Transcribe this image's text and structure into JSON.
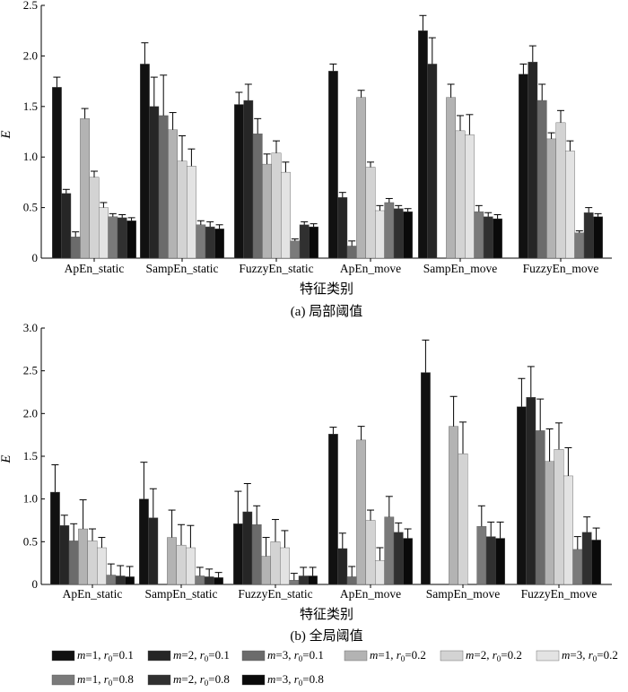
{
  "figure": {
    "legend": {
      "entries": [
        {
          "m": "1",
          "r": "0.1",
          "color": "#111111"
        },
        {
          "m": "2",
          "r": "0.1",
          "color": "#262626"
        },
        {
          "m": "3",
          "r": "0.1",
          "color": "#6b6b6b"
        },
        {
          "m": "1",
          "r": "0.2",
          "color": "#b3b3b3"
        },
        {
          "m": "2",
          "r": "0.2",
          "color": "#d3d3d3"
        },
        {
          "m": "3",
          "r": "0.2",
          "color": "#e3e3e3"
        },
        {
          "m": "1",
          "r": "0.8",
          "color": "#7a7a7a"
        },
        {
          "m": "2",
          "r": "0.8",
          "color": "#303030"
        },
        {
          "m": "3",
          "r": "0.8",
          "color": "#0a0a0a"
        }
      ],
      "m_symbol": "m",
      "r_symbol": "r",
      "r_subscript": "0"
    }
  },
  "chart_data": [
    {
      "type": "bar",
      "caption": "(a) 局部阈值",
      "xlabel": "特征类别",
      "ylabel": "E",
      "ylim": [
        0,
        2.5
      ],
      "yticks": [
        "0",
        "0.5",
        "1.0",
        "1.5",
        "2.0",
        "2.5"
      ],
      "categories": [
        "ApEn_static",
        "SampEn_static",
        "FuzzyEn_static",
        "ApEn_move",
        "SampEn_move",
        "FuzzyEn_move"
      ],
      "series": [
        {
          "values": [
            1.69,
            1.92,
            1.52,
            1.85,
            2.25,
            1.82
          ],
          "errors": [
            0.1,
            0.21,
            0.12,
            0.07,
            0.15,
            0.1
          ]
        },
        {
          "values": [
            0.64,
            1.5,
            1.56,
            0.6,
            1.92,
            1.94
          ],
          "errors": [
            0.04,
            0.29,
            0.16,
            0.05,
            0.26,
            0.16
          ]
        },
        {
          "values": [
            0.21,
            1.41,
            1.23,
            0.12,
            null,
            1.56
          ],
          "errors": [
            0.05,
            0.4,
            0.15,
            0.05,
            0,
            0.16
          ]
        },
        {
          "values": [
            1.38,
            1.27,
            0.93,
            1.59,
            1.59,
            1.18
          ],
          "errors": [
            0.1,
            0.17,
            0.1,
            0.07,
            0.13,
            0.06
          ]
        },
        {
          "values": [
            0.8,
            0.96,
            1.04,
            0.9,
            1.26,
            1.34
          ],
          "errors": [
            0.06,
            0.25,
            0.12,
            0.05,
            0.15,
            0.12
          ]
        },
        {
          "values": [
            0.5,
            0.91,
            0.85,
            0.47,
            1.22,
            1.06
          ],
          "errors": [
            0.05,
            0.17,
            0.1,
            0.05,
            0.2,
            0.1
          ]
        },
        {
          "values": [
            0.41,
            0.33,
            0.17,
            0.55,
            0.46,
            0.25
          ],
          "errors": [
            0.03,
            0.04,
            0.02,
            0.04,
            0.06,
            0.02
          ]
        },
        {
          "values": [
            0.4,
            0.31,
            0.33,
            0.49,
            0.41,
            0.45
          ],
          "errors": [
            0.03,
            0.05,
            0.03,
            0.03,
            0.04,
            0.05
          ]
        },
        {
          "values": [
            0.37,
            0.29,
            0.31,
            0.46,
            0.39,
            0.41
          ],
          "errors": [
            0.03,
            0.04,
            0.03,
            0.03,
            0.04,
            0.03
          ]
        }
      ]
    },
    {
      "type": "bar",
      "caption": "(b) 全局阈值",
      "xlabel": "特征类别",
      "ylabel": "E",
      "ylim": [
        0,
        3.0
      ],
      "yticks": [
        "0",
        "0.5",
        "1.0",
        "1.5",
        "2.0",
        "2.5",
        "3.0"
      ],
      "categories": [
        "ApEn_static",
        "SampEn_static",
        "FuzzyEn_static",
        "ApEn_move",
        "SampEn_move",
        "FuzzyEn_move"
      ],
      "series": [
        {
          "values": [
            1.08,
            1.0,
            0.71,
            1.76,
            2.48,
            2.08
          ],
          "errors": [
            0.32,
            0.43,
            0.38,
            0.08,
            0.38,
            0.33
          ]
        },
        {
          "values": [
            0.69,
            0.78,
            0.85,
            0.42,
            null,
            2.19
          ],
          "errors": [
            0.12,
            0.34,
            0.33,
            0.18,
            0,
            0.36
          ]
        },
        {
          "values": [
            0.51,
            null,
            0.7,
            0.09,
            null,
            1.8
          ],
          "errors": [
            0.2,
            0,
            0.22,
            0.12,
            0,
            0.37
          ]
        },
        {
          "values": [
            0.65,
            0.55,
            0.33,
            1.69,
            1.85,
            1.44
          ],
          "errors": [
            0.34,
            0.32,
            0.22,
            0.16,
            0.35,
            0.38
          ]
        },
        {
          "values": [
            0.51,
            0.46,
            0.5,
            0.75,
            1.53,
            1.58
          ],
          "errors": [
            0.14,
            0.24,
            0.26,
            0.12,
            0.37,
            0.31
          ]
        },
        {
          "values": [
            0.43,
            0.43,
            0.43,
            0.28,
            null,
            1.27
          ],
          "errors": [
            0.12,
            0.26,
            0.2,
            0.15,
            0,
            0.33
          ]
        },
        {
          "values": [
            0.11,
            0.1,
            0.05,
            0.79,
            0.68,
            0.41
          ],
          "errors": [
            0.13,
            0.1,
            0.08,
            0.24,
            0.24,
            0.15
          ]
        },
        {
          "values": [
            0.1,
            0.09,
            0.1,
            0.61,
            0.56,
            0.61
          ],
          "errors": [
            0.12,
            0.09,
            0.1,
            0.11,
            0.17,
            0.18
          ]
        },
        {
          "values": [
            0.09,
            0.08,
            0.1,
            0.54,
            0.54,
            0.52
          ],
          "errors": [
            0.12,
            0.06,
            0.1,
            0.11,
            0.19,
            0.14
          ]
        }
      ]
    }
  ]
}
